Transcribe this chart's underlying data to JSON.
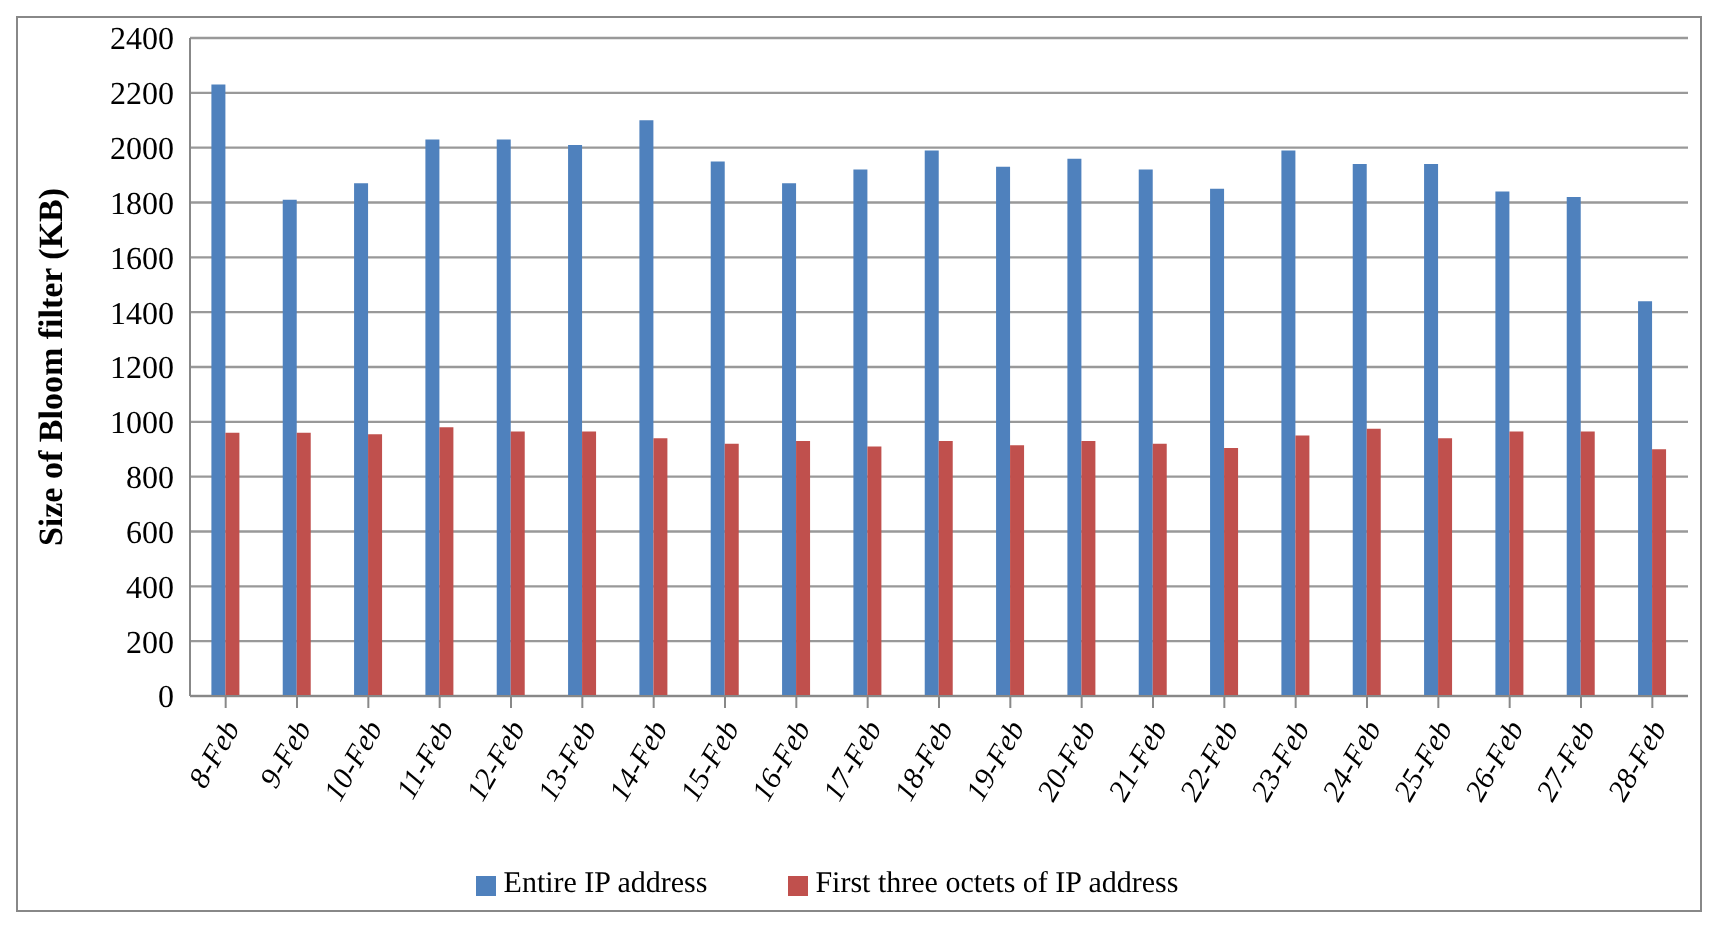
{
  "chart_data": {
    "type": "bar",
    "ylabel": "Size of Bloom filter (KB)",
    "categories": [
      "8-Feb",
      "9-Feb",
      "10-Feb",
      "11-Feb",
      "12-Feb",
      "13-Feb",
      "14-Feb",
      "15-Feb",
      "16-Feb",
      "17-Feb",
      "18-Feb",
      "19-Feb",
      "20-Feb",
      "21-Feb",
      "22-Feb",
      "23-Feb",
      "24-Feb",
      "25-Feb",
      "26-Feb",
      "27-Feb",
      "28-Feb"
    ],
    "series": [
      {
        "name": "Entire IP address",
        "color": "#4f81bd",
        "values": [
          2230,
          1810,
          1870,
          2030,
          2030,
          2010,
          2100,
          1950,
          1870,
          1920,
          1990,
          1930,
          1960,
          1920,
          1850,
          1990,
          1940,
          1940,
          1840,
          1820,
          1440
        ]
      },
      {
        "name": "First three octets of IP address",
        "color": "#c0504d",
        "values": [
          960,
          960,
          955,
          980,
          965,
          965,
          940,
          920,
          930,
          910,
          930,
          915,
          930,
          920,
          905,
          950,
          975,
          940,
          965,
          965,
          900
        ]
      }
    ],
    "ylim": [
      0,
      2400
    ],
    "yticks": [
      0,
      200,
      400,
      600,
      800,
      1000,
      1200,
      1400,
      1600,
      1800,
      2000,
      2200,
      2400
    ],
    "grid": "y",
    "legend": "bottom"
  }
}
